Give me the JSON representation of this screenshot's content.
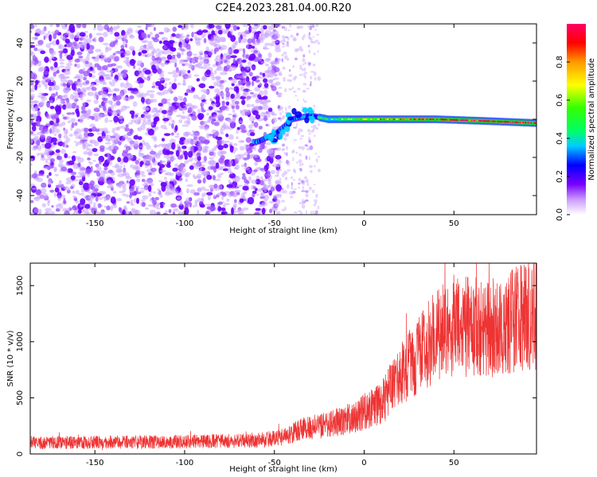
{
  "title": "C2E4.2023.281.04.00.R20",
  "chart_data": [
    {
      "type": "heatmap",
      "xlabel": "Height of straight line (km)",
      "ylabel": "Frequency (Hz)",
      "xlim": [
        -186,
        96
      ],
      "ylim": [
        -50,
        50
      ],
      "xticks": [
        "-150",
        "-100",
        "-50",
        "0",
        "50"
      ],
      "xtick_values": [
        -150,
        -100,
        -50,
        0,
        50
      ],
      "yticks": [
        "-40",
        "-20",
        "0",
        "20",
        "40"
      ],
      "ytick_values": [
        -40,
        -20,
        0,
        20,
        40
      ],
      "colorbar": {
        "label": "Normalized spectral amplitude",
        "range": [
          0,
          1
        ],
        "ticks": [
          "0.0",
          "0.2",
          "0.4",
          "0.6",
          "0.8"
        ],
        "tick_values": [
          0.0,
          0.2,
          0.4,
          0.6,
          0.8
        ],
        "colormap": [
          "#ffffff",
          "#cc99ff",
          "#7700ff",
          "#0000ff",
          "#00ccff",
          "#00ff66",
          "#33ff00",
          "#ffff00",
          "#ff9900",
          "#ff0000",
          "#ff0066"
        ]
      },
      "features": {
        "noise_region_x": [
          -186,
          -47
        ],
        "sparse_noise_x": [
          -47,
          -25
        ],
        "signal_track": [
          {
            "x": -60,
            "y": -12
          },
          {
            "x": -50,
            "y": -8
          },
          {
            "x": -40,
            "y": 0
          },
          {
            "x": -30,
            "y": 2
          },
          {
            "x": -20,
            "y": 0
          },
          {
            "x": 0,
            "y": 0
          },
          {
            "x": 40,
            "y": 0
          },
          {
            "x": 70,
            "y": -1
          },
          {
            "x": 96,
            "y": -2
          }
        ],
        "strong_signal_x": [
          -25,
          96
        ]
      }
    },
    {
      "type": "line",
      "xlabel": "Height of straight line (km)",
      "ylabel": "SNR (10 * v/v)",
      "xlim": [
        -186,
        96
      ],
      "ylim": [
        0,
        1700
      ],
      "xticks": [
        "-150",
        "-100",
        "-50",
        "0",
        "50"
      ],
      "xtick_values": [
        -150,
        -100,
        -50,
        0,
        50
      ],
      "yticks": [
        "0",
        "500",
        "1000",
        "1500"
      ],
      "ytick_values": [
        0,
        500,
        1000,
        1500
      ],
      "series_color": "#ee3333",
      "trend": [
        {
          "x": -186,
          "y": 100
        },
        {
          "x": -100,
          "y": 110
        },
        {
          "x": -60,
          "y": 120
        },
        {
          "x": -45,
          "y": 150
        },
        {
          "x": -35,
          "y": 220
        },
        {
          "x": -20,
          "y": 260
        },
        {
          "x": -5,
          "y": 330
        },
        {
          "x": 10,
          "y": 460
        },
        {
          "x": 20,
          "y": 700
        },
        {
          "x": 30,
          "y": 880
        },
        {
          "x": 40,
          "y": 1050
        },
        {
          "x": 50,
          "y": 1150
        },
        {
          "x": 60,
          "y": 1130
        },
        {
          "x": 70,
          "y": 1110
        },
        {
          "x": 80,
          "y": 1180
        },
        {
          "x": 96,
          "y": 1240
        }
      ]
    }
  ]
}
